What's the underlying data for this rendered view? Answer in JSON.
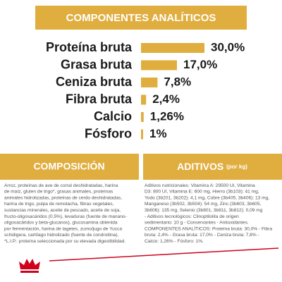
{
  "chart_data": {
    "type": "bar",
    "orientation": "horizontal",
    "title": "COMPONENTES ANALÍTICOS",
    "categories": [
      "Proteína bruta",
      "Grasa bruta",
      "Ceniza bruta",
      "Fibra bruta",
      "Calcio",
      "Fósforo"
    ],
    "values": [
      30.0,
      17.0,
      7.8,
      2.4,
      1.26,
      1
    ],
    "value_labels": [
      "30,0%",
      "17,0%",
      "7,8%",
      "2,4%",
      "1,26%",
      "1%"
    ],
    "color": "#e0ad3f"
  },
  "composition": {
    "title": "COMPOSICIÓN",
    "lines": [
      "Arroz, proteínas de ave de corral deshidratadas, harina",
      "de maíz, gluten de trigo*, grasas animales, proteínas",
      "animales hidrolizadas, proteínas de cerdo deshidratadas,",
      "harina de trigo, pulpa de remolacha, fibras vegetales,",
      "sustancias minerales, aceite de pescado, aceite de soja,",
      "fructo-oligosacáridos (0,5%), levaduras (fuente de manano-",
      "oligosacáridos y beta-glucanos), glucosamina obtenida",
      "por fermentación, harina de tagetes, zumo/jugo de Yucca",
      "schidigera, cartílago hidrolizado (fuente de condroitina).",
      "*L.I.P.: proteína seleccionada por su elevada digestibilidad."
    ]
  },
  "additives": {
    "title": "ADITIVOS",
    "unit": "(por kg)",
    "lines": [
      "Aditivos nutricionales: Vitamina A: 29500 UI, Vitamina",
      "D3: 800 UI, Vitamina E: 600 mg, Hierro (3b103): 41 mg,",
      "Yodo (3b201, 3b202): 4,1 mg, Cobre (3b405, 3b406): 13 mg,",
      "Manganeso (3b502, 3b504): 54 mg, Zinc (3b603, 3b605,",
      "3b606): 135 mg, Selenio (3b801, 3b811, 3b812): 0,09 mg",
      "- Aditivos tecnológicos: Clinoptilolita de origen",
      "sedimentario: 10 g - Conservantes - Antioxidantes.",
      "COMPONENTES ANALÍTICOS: Proteína bruta: 30,0% - Fibra",
      "bruta: 2,4% - Grasa bruta: 17,0% - Ceniza bruta: 7,8% -",
      "Calcio: 1,26% - Fósforo: 1%."
    ]
  }
}
